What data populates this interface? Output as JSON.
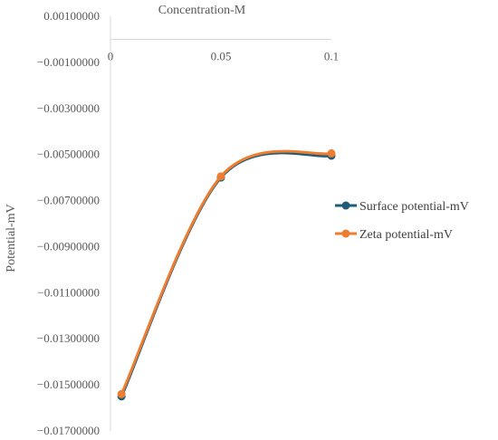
{
  "chart_data": {
    "type": "line",
    "title": "",
    "xlabel": "Concentration-M",
    "ylabel": "Potential-mV",
    "xlim": [
      0,
      0.1
    ],
    "ylim": [
      -0.017,
      0.001
    ],
    "x_ticks": [
      "0",
      "0.05",
      "0.1"
    ],
    "y_ticks": [
      "0.00100000",
      "−0.00100000",
      "−0.00300000",
      "−0.00500000",
      "−0.00700000",
      "−0.00900000",
      "−0.01100000",
      "−0.01300000",
      "−0.01500000",
      "−0.01700000"
    ],
    "grid": false,
    "legend_position": "right",
    "smooth": true,
    "series": [
      {
        "name": "Surface potential-mV",
        "color": "#1f5c7a",
        "x": [
          0.005,
          0.05,
          0.1
        ],
        "y": [
          -0.0155,
          -0.006,
          -0.00505
        ]
      },
      {
        "name": "Zeta potential-mV",
        "color": "#ed7d31",
        "x": [
          0.005,
          0.05,
          0.1
        ],
        "y": [
          -0.0154,
          -0.00595,
          -0.00495
        ]
      }
    ]
  }
}
